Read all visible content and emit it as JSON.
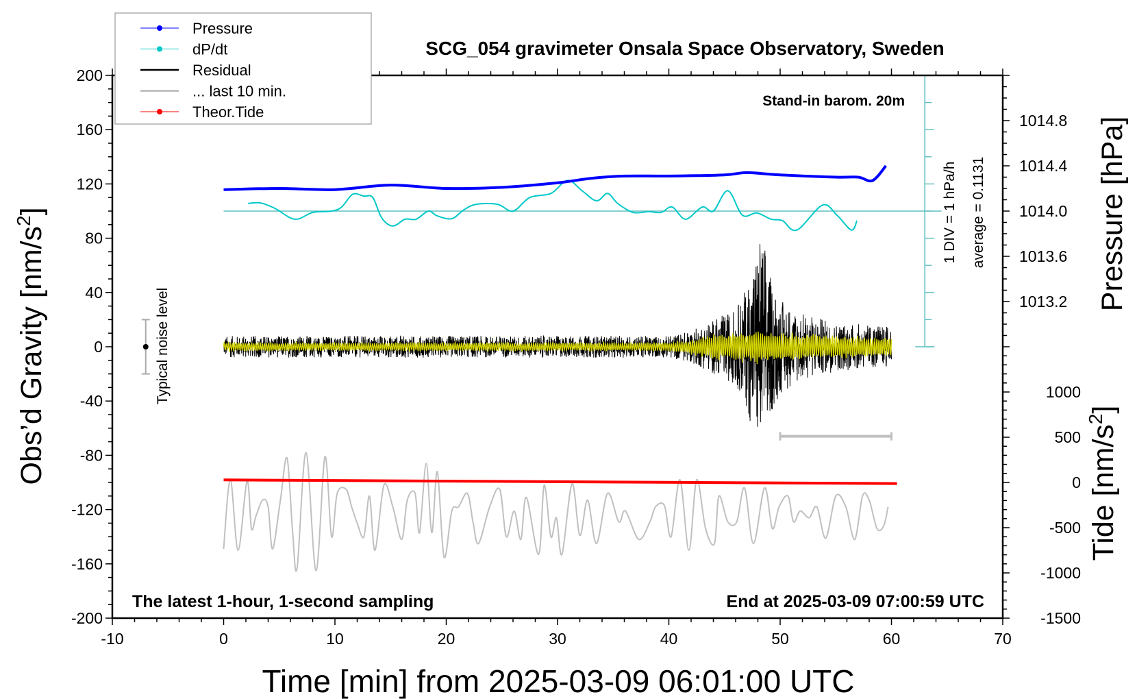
{
  "title": "SCG_054 gravimeter Onsala Space Observatory, Sweden",
  "annotations": {
    "barometer": "Stand-in barom. 20m",
    "sampling": "The latest 1-hour, 1-second sampling",
    "end_time": "End at 2025-03-09 07:00:59 UTC",
    "noise_level": "Typical noise level",
    "div_scale": "1 DIV = 1 hPa/h",
    "average": "average = 0.1131"
  },
  "legend": [
    {
      "label": "Pressure",
      "color": "#0000ff",
      "marker": true
    },
    {
      "label": "dP/dt",
      "color": "#00c8c8",
      "marker": true
    },
    {
      "label": "Residual",
      "color": "#000000",
      "marker": false
    },
    {
      "label": "... last 10 min.",
      "color": "#c0c0c0",
      "marker": false
    },
    {
      "label": "Theor.Tide",
      "color": "#ff0000",
      "marker": true
    }
  ],
  "colors": {
    "pressure": "#0000ff",
    "dpdt": "#00c8c8",
    "dpdt_axis": "#5fbfbf",
    "residual": "#000000",
    "filtered": "#d4d400",
    "last10": "#c0c0c0",
    "tide": "#ff0000"
  },
  "chart_data": {
    "type": "line",
    "title": "SCG_054 gravimeter Onsala Space Observatory, Sweden",
    "xlabel": "Time [min] from 2025-03-09 06:01:00 UTC",
    "ylabel_left": "Obs’d Gravity [nm/s",
    "ylabel_left_sup": "2",
    "ylabel_left_end": "]",
    "ylabel_pressure": "Pressure [hPa]",
    "ylabel_tide": "Tide [nm/s",
    "ylabel_tide_sup": "2",
    "ylabel_tide_end": "]",
    "xlim": [
      -10,
      70
    ],
    "ylim": [
      -200,
      200
    ],
    "x_ticks": [
      -10,
      0,
      10,
      20,
      30,
      40,
      50,
      60,
      70
    ],
    "y_ticks": [
      200,
      160,
      120,
      80,
      40,
      0,
      -40,
      -80,
      -120,
      -160,
      -200
    ],
    "pressure_ticks": [
      1014.8,
      1014.4,
      1014.0,
      1013.6,
      1013.2
    ],
    "tide_ticks": [
      1000,
      500,
      0,
      -500,
      -1000,
      -1500
    ],
    "pressure": {
      "unit": "hPa",
      "t": [
        0,
        5,
        10,
        15,
        20,
        25,
        30,
        33,
        36,
        40,
        45,
        47,
        50,
        55,
        57,
        58.3,
        59.5
      ],
      "values": [
        1014.19,
        1014.2,
        1014.19,
        1014.23,
        1014.2,
        1014.21,
        1014.25,
        1014.29,
        1014.31,
        1014.31,
        1014.32,
        1014.34,
        1014.32,
        1014.3,
        1014.3,
        1014.27,
        1014.4
      ]
    },
    "dpdt": {
      "unit": "hPa/h",
      "t": [
        2.2,
        3.3,
        4.6,
        6.4,
        8,
        9.7,
        10.6,
        11.6,
        12.6,
        13.4,
        14.2,
        15.2,
        16.3,
        17.3,
        18.4,
        19.2,
        20.5,
        21.6,
        22.7,
        24.6,
        26,
        27.5,
        29.4,
        30.9,
        32.2,
        33.5,
        34.5,
        35.4,
        36.8,
        38.2,
        39.3,
        40.3,
        41.5,
        43,
        44,
        45.3,
        46.6,
        47.9,
        49.2,
        50.2,
        51.5,
        53.8,
        55.1,
        56.4,
        56.9
      ],
      "values": [
        0.28,
        0.3,
        0.1,
        -0.3,
        -0.05,
        0.0,
        0.15,
        0.62,
        0.55,
        0.5,
        -0.25,
        -0.55,
        -0.3,
        -0.3,
        0.0,
        -0.18,
        -0.28,
        0.05,
        0.25,
        0.25,
        0.0,
        0.5,
        0.65,
        1.13,
        0.75,
        0.38,
        0.65,
        0.28,
        -0.05,
        -0.02,
        -0.05,
        0.15,
        -0.3,
        0.15,
        0.0,
        0.75,
        -0.15,
        -0.07,
        -0.3,
        -0.35,
        -0.7,
        0.22,
        -0.15,
        -0.7,
        -0.35
      ]
    },
    "dpdt_axis": {
      "t": 63,
      "baseline_gravity": 100,
      "div_hpa_per_h": 1,
      "average": 0.1131
    },
    "residual": {
      "unit": "nm/s2",
      "sampling_s": 1,
      "t_start": 0,
      "t_end": 60,
      "envelope_t": [
        0,
        40,
        42,
        44,
        46,
        47,
        48,
        48.5,
        49,
        50,
        52,
        55,
        60
      ],
      "envelope_amp": [
        8,
        8,
        12,
        20,
        28,
        45,
        80,
        85,
        55,
        35,
        25,
        18,
        15
      ],
      "filtered_amp": [
        3,
        3,
        5,
        9,
        10,
        11,
        12,
        12,
        11,
        10,
        9,
        8,
        7
      ]
    },
    "last_10_min": {
      "window_min": [
        50,
        60
      ],
      "bar_level": -66,
      "t": [
        0,
        0.6,
        1.3,
        2.1,
        2.5,
        2.9,
        3.5,
        4.0,
        4.4,
        5.1,
        5.7,
        6.2,
        6.6,
        7.4,
        8.3,
        9.1,
        9.7,
        10.2,
        11.0,
        11.5,
        12.0,
        12.6,
        13.1,
        13.6,
        14.4,
        15.2,
        16.0,
        16.5,
        17.2,
        17.6,
        18.2,
        18.7,
        19.2,
        19.8,
        20.5,
        21.1,
        21.9,
        22.4,
        22.9,
        23.9,
        24.8,
        25.4,
        26.1,
        26.7,
        27.2,
        28.3,
        28.8,
        29.4,
        29.9,
        30.4,
        31.3,
        32.0,
        32.7,
        33.5,
        34.5,
        35.5,
        36.1,
        37.3,
        38.3,
        38.8,
        39.6,
        40.2,
        41.0,
        41.8,
        42.5,
        43.3,
        44.1,
        44.5,
        45.3,
        46.1,
        46.8,
        47.6,
        48.6,
        49.3,
        49.9,
        50.7,
        51.2,
        51.8,
        52.6,
        53.3,
        54.1,
        55.0,
        55.9,
        56.7,
        57.4,
        58.0,
        58.7,
        59.3,
        59.7
      ],
      "values": [
        -149,
        -98,
        -150,
        -99,
        -134,
        -125,
        -113,
        -118,
        -149,
        -113,
        -82,
        -137,
        -163,
        -78,
        -165,
        -81,
        -140,
        -108,
        -105,
        -118,
        -130,
        -140,
        -110,
        -150,
        -102,
        -118,
        -142,
        -113,
        -108,
        -137,
        -86,
        -137,
        -92,
        -155,
        -121,
        -118,
        -108,
        -129,
        -145,
        -118,
        -105,
        -140,
        -121,
        -142,
        -111,
        -153,
        -102,
        -140,
        -126,
        -153,
        -101,
        -139,
        -113,
        -145,
        -108,
        -129,
        -121,
        -142,
        -129,
        -118,
        -117,
        -140,
        -98,
        -150,
        -98,
        -134,
        -145,
        -110,
        -129,
        -129,
        -104,
        -145,
        -104,
        -134,
        -118,
        -110,
        -129,
        -121,
        -126,
        -118,
        -141,
        -110,
        -118,
        -142,
        -110,
        -113,
        -134,
        -132,
        -118
      ]
    },
    "tide": {
      "unit": "nm/s2",
      "t": [
        0,
        60.5
      ],
      "values": [
        28,
        -12
      ]
    },
    "noise_bar": {
      "t": -7,
      "center": 0,
      "half_range": 20
    }
  }
}
